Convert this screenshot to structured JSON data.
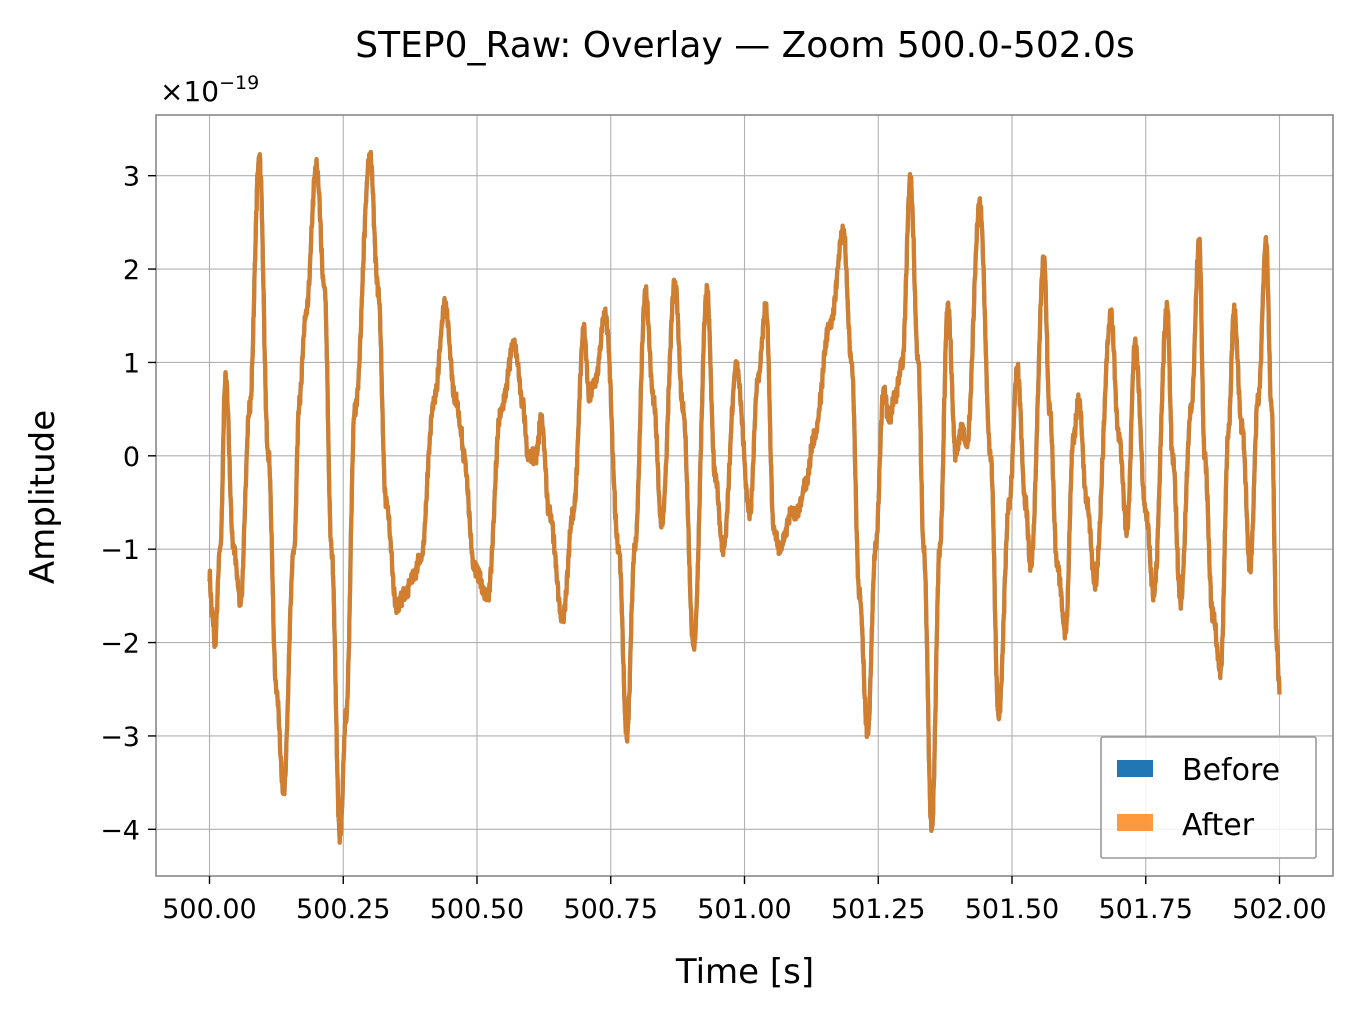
{
  "chart_data": {
    "type": "line",
    "title": "STEP0_Raw: Overlay — Zoom 500.0-502.0s",
    "xlabel": "Time [s]",
    "ylabel": "Amplitude",
    "y_offset_text": {
      "base": "×10",
      "exponent": "−19"
    },
    "xlim": [
      499.9,
      502.1
    ],
    "ylim": [
      -4.5,
      3.65
    ],
    "x_ticks": [
      500.0,
      500.25,
      500.5,
      500.75,
      501.0,
      501.25,
      501.5,
      501.75,
      502.0
    ],
    "x_tick_labels": [
      "500.00",
      "500.25",
      "500.50",
      "500.75",
      "501.00",
      "501.25",
      "501.50",
      "501.75",
      "502.00"
    ],
    "y_ticks": [
      -4,
      -3,
      -2,
      -1,
      0,
      1,
      2,
      3
    ],
    "y_tick_labels": [
      "−4",
      "−3",
      "−2",
      "−1",
      "0",
      "1",
      "2",
      "3"
    ],
    "grid": true,
    "legend_position": "bottom-right",
    "series_keypoints": [
      [
        500.0,
        -1.3
      ],
      [
        500.005,
        -1.7
      ],
      [
        500.01,
        -2.0
      ],
      [
        500.02,
        -1.0
      ],
      [
        500.03,
        0.85
      ],
      [
        500.045,
        -1.0
      ],
      [
        500.058,
        -1.55
      ],
      [
        500.075,
        0.5
      ],
      [
        500.093,
        3.2
      ],
      [
        500.11,
        0.0
      ],
      [
        500.125,
        -2.5
      ],
      [
        500.138,
        -3.6
      ],
      [
        500.158,
        -1.0
      ],
      [
        500.168,
        0.6
      ],
      [
        500.18,
        1.5
      ],
      [
        500.2,
        3.1
      ],
      [
        500.215,
        1.8
      ],
      [
        500.228,
        -1.0
      ],
      [
        500.244,
        -4.1
      ],
      [
        500.255,
        -2.8
      ],
      [
        500.272,
        0.5
      ],
      [
        500.3,
        3.2
      ],
      [
        500.315,
        1.8
      ],
      [
        500.33,
        -0.5
      ],
      [
        500.35,
        -1.6
      ],
      [
        500.365,
        -1.5
      ],
      [
        500.38,
        -1.3
      ],
      [
        500.395,
        -1.1
      ],
      [
        500.42,
        0.6
      ],
      [
        500.44,
        1.6
      ],
      [
        500.46,
        0.6
      ],
      [
        500.47,
        0.3
      ],
      [
        500.475,
        0.0
      ],
      [
        500.495,
        -1.2
      ],
      [
        500.52,
        -1.5
      ],
      [
        500.545,
        0.5
      ],
      [
        500.57,
        1.2
      ],
      [
        500.585,
        0.6
      ],
      [
        500.595,
        0.0
      ],
      [
        500.61,
        0.0
      ],
      [
        500.62,
        0.4
      ],
      [
        500.635,
        -0.6
      ],
      [
        500.66,
        -1.75
      ],
      [
        500.68,
        -0.6
      ],
      [
        500.7,
        1.35
      ],
      [
        500.71,
        0.6
      ],
      [
        500.72,
        0.8
      ],
      [
        500.74,
        1.5
      ],
      [
        500.765,
        -1.0
      ],
      [
        500.78,
        -3.0
      ],
      [
        500.795,
        -1.0
      ],
      [
        500.815,
        1.75
      ],
      [
        500.83,
        0.6
      ],
      [
        500.845,
        -0.75
      ],
      [
        500.87,
        1.85
      ],
      [
        500.885,
        0.5
      ],
      [
        500.905,
        -2.05
      ],
      [
        500.93,
        1.75
      ],
      [
        500.945,
        -0.2
      ],
      [
        500.96,
        -1.0
      ],
      [
        500.985,
        0.95
      ],
      [
        501.01,
        -0.6
      ],
      [
        501.025,
        0.8
      ],
      [
        501.04,
        1.6
      ],
      [
        501.055,
        -0.8
      ],
      [
        501.065,
        -1.0
      ],
      [
        501.09,
        -0.6
      ],
      [
        501.1,
        -0.6
      ],
      [
        501.115,
        -0.3
      ],
      [
        501.13,
        0.2
      ],
      [
        501.16,
        1.4
      ],
      [
        501.185,
        2.4
      ],
      [
        501.2,
        1.0
      ],
      [
        501.215,
        -1.5
      ],
      [
        501.23,
        -3.0
      ],
      [
        501.245,
        -1.0
      ],
      [
        501.26,
        0.7
      ],
      [
        501.27,
        0.4
      ],
      [
        501.28,
        0.6
      ],
      [
        501.295,
        1.0
      ],
      [
        501.31,
        2.95
      ],
      [
        501.325,
        1.0
      ],
      [
        501.335,
        -1.0
      ],
      [
        501.35,
        -4.0
      ],
      [
        501.365,
        -1.0
      ],
      [
        501.38,
        1.6
      ],
      [
        501.395,
        0.0
      ],
      [
        501.405,
        0.3
      ],
      [
        501.415,
        0.1
      ],
      [
        501.44,
        2.7
      ],
      [
        501.46,
        0.0
      ],
      [
        501.475,
        -2.8
      ],
      [
        501.495,
        -0.5
      ],
      [
        501.51,
        0.95
      ],
      [
        501.525,
        -0.5
      ],
      [
        501.535,
        -1.2
      ],
      [
        501.56,
        2.1
      ],
      [
        501.57,
        0.5
      ],
      [
        501.585,
        -1.2
      ],
      [
        501.6,
        -1.9
      ],
      [
        501.615,
        0.2
      ],
      [
        501.625,
        0.6
      ],
      [
        501.64,
        -0.5
      ],
      [
        501.655,
        -1.35
      ],
      [
        501.685,
        1.5
      ],
      [
        501.7,
        0.2
      ],
      [
        501.715,
        -0.8
      ],
      [
        501.73,
        1.2
      ],
      [
        501.75,
        -0.6
      ],
      [
        501.765,
        -1.5
      ],
      [
        501.79,
        1.6
      ],
      [
        501.8,
        0.0
      ],
      [
        501.815,
        -1.55
      ],
      [
        501.835,
        0.5
      ],
      [
        501.85,
        2.3
      ],
      [
        501.86,
        0.0
      ],
      [
        501.875,
        -1.7
      ],
      [
        501.89,
        -2.3
      ],
      [
        501.905,
        0.3
      ],
      [
        501.915,
        1.55
      ],
      [
        501.93,
        0.3
      ],
      [
        501.945,
        -1.2
      ],
      [
        501.96,
        0.6
      ],
      [
        501.975,
        2.3
      ],
      [
        501.985,
        0.5
      ],
      [
        501.995,
        -2.0
      ],
      [
        502.0,
        -2.5
      ]
    ],
    "series": [
      {
        "name": "Before",
        "color": "#1f77b4",
        "alpha": 1.0
      },
      {
        "name": "After",
        "color": "#ff7f0e",
        "alpha": 0.8
      }
    ]
  }
}
